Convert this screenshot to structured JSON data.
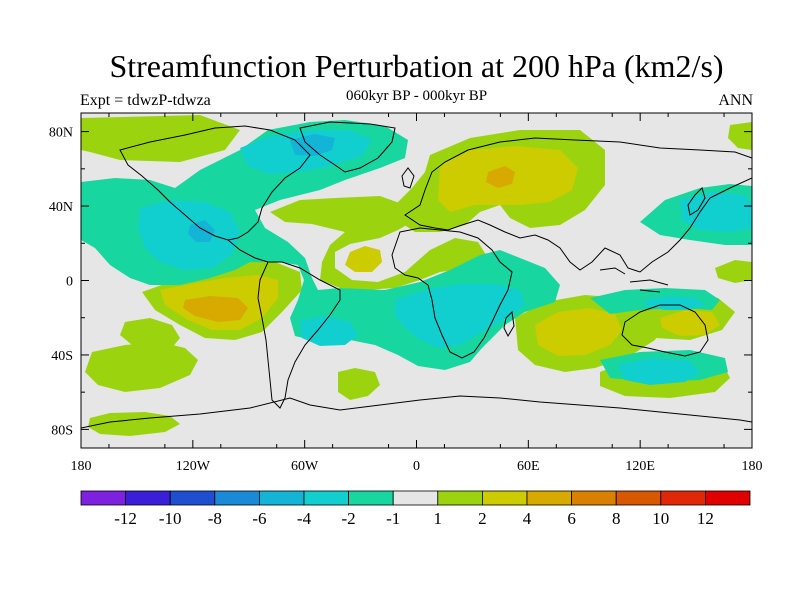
{
  "title": "Streamfunction Perturbation at 200 hPa (km2/s)",
  "subtitle": "060kyr BP - 000kyr BP",
  "left_label": "Expt = tdwzP-tdwza",
  "right_label": "ANN",
  "axes": {
    "lon_ticks": [
      "180",
      "120W",
      "60W",
      "0",
      "60E",
      "120E",
      "180"
    ],
    "lat_ticks": [
      "80N",
      "40N",
      "0",
      "40S",
      "80S"
    ]
  },
  "colorbar": {
    "labels": [
      "-12",
      "-10",
      "-8",
      "-6",
      "-4",
      "-2",
      "-1",
      "1",
      "2",
      "4",
      "6",
      "8",
      "10",
      "12"
    ],
    "colors": [
      "#7d20e0",
      "#3a1fd8",
      "#1f4fd0",
      "#1a8ad8",
      "#14b4d6",
      "#12cfcf",
      "#18d6a0",
      "#e6e6e6",
      "#9bd40e",
      "#cccc00",
      "#d8aa00",
      "#da8000",
      "#d85800",
      "#e02808",
      "#e00000"
    ]
  },
  "colors": {
    "background": "#e6e6e6",
    "level_neg1": "#18d6a0",
    "level_neg2": "#12cfcf",
    "level_neg4": "#14b4d6",
    "level_pos1": "#9bd40e",
    "level_pos2": "#cccc00",
    "level_pos4": "#d8aa00"
  }
}
